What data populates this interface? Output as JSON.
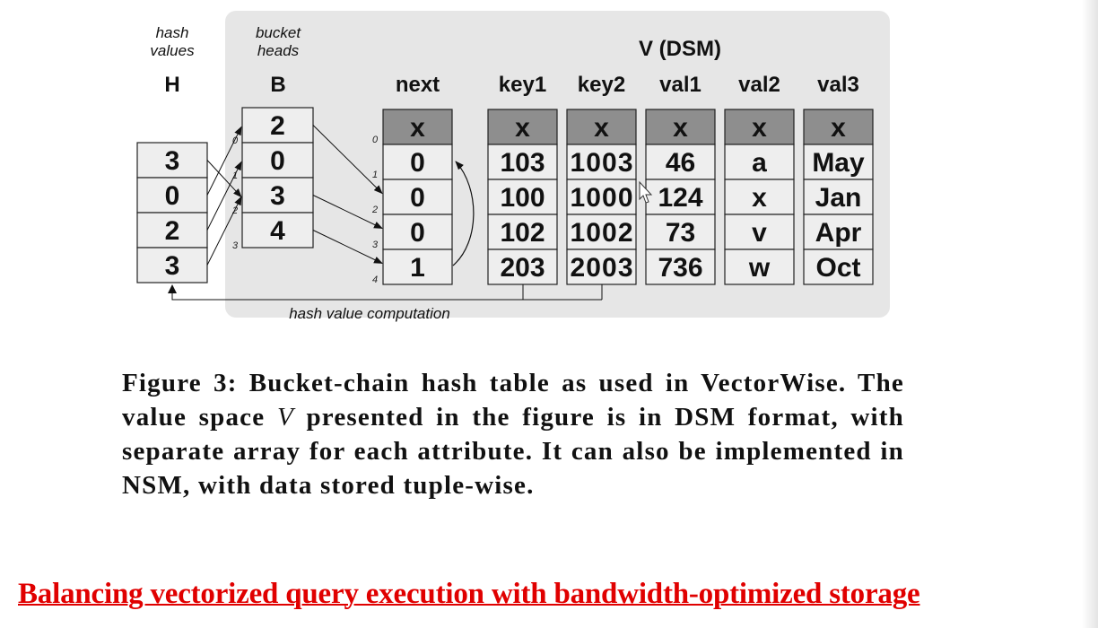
{
  "diagram": {
    "labels": {
      "hash_values": [
        "hash",
        "values"
      ],
      "bucket_heads": [
        "bucket",
        "heads"
      ],
      "h_title": "H",
      "b_title": "B",
      "v_title": "V (DSM)",
      "computation": "hash value computation"
    },
    "h_values": [
      "3",
      "0",
      "2",
      "3"
    ],
    "b_values": [
      "2",
      "0",
      "3",
      "4"
    ],
    "b_indices": [
      "0",
      "1",
      "2",
      "3"
    ],
    "next_indices": [
      "0",
      "1",
      "2",
      "3",
      "4"
    ],
    "columns": [
      {
        "name": "next",
        "cells": [
          "x",
          "0",
          "0",
          "0",
          "1"
        ]
      },
      {
        "name": "key1",
        "cells": [
          "x",
          "103",
          "100",
          "102",
          "203"
        ]
      },
      {
        "name": "key2",
        "cells": [
          "x",
          "1003",
          "1000",
          "1002",
          "2003"
        ]
      },
      {
        "name": "val1",
        "cells": [
          "x",
          "46",
          "124",
          "73",
          "736"
        ]
      },
      {
        "name": "val2",
        "cells": [
          "x",
          "a",
          "x",
          "v",
          "w"
        ]
      },
      {
        "name": "val3",
        "cells": [
          "x",
          "May",
          "Jan",
          "Apr",
          "Oct"
        ]
      }
    ],
    "colors": {
      "panel": "#e6e6e6",
      "header_cell": "#8e8e8e",
      "cell": "#eeeeee",
      "stroke": "#222222"
    }
  },
  "caption": {
    "prefix": "Figure 3:  Bucket-chain hash table as used in VectorWise.  The value space ",
    "variable": "V",
    "suffix": " presented in the figure is in DSM format, with separate array for each attribute.  It can also be implemented in NSM, with data stored tuple-wise."
  },
  "footer": "Balancing vectorized query execution with bandwidth-optimized storage"
}
